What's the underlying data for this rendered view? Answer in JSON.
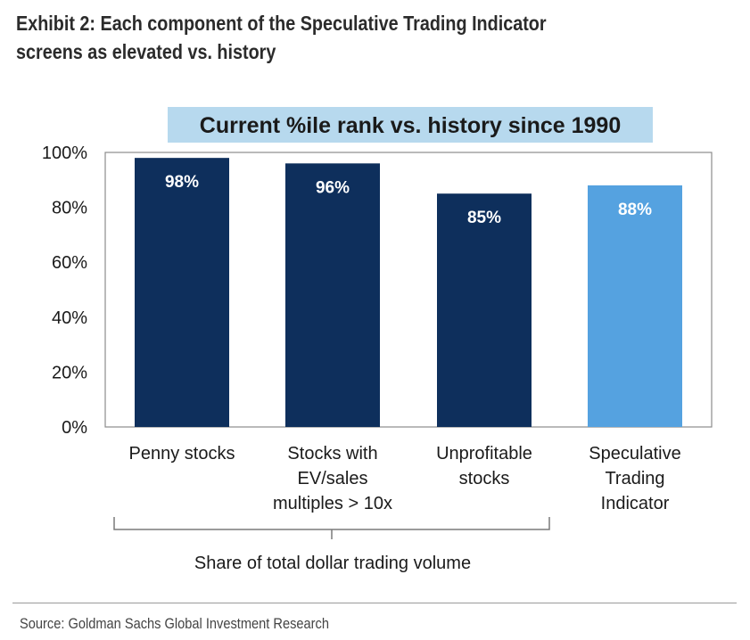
{
  "exhibit": {
    "title_line1": "Exhibit 2: Each component of the Speculative Trading Indicator",
    "title_line2": "screens as elevated vs. history"
  },
  "chart_data": {
    "type": "bar",
    "title": "Current %ile rank vs. history since 1990",
    "categories": [
      [
        "Penny stocks"
      ],
      [
        "Stocks with",
        "EV/sales",
        "multiples > 10x"
      ],
      [
        "Unprofitable",
        "stocks"
      ],
      [
        "Speculative",
        "Trading",
        "Indicator"
      ]
    ],
    "values": [
      98,
      96,
      85,
      88
    ],
    "data_labels": [
      "98%",
      "96%",
      "85%",
      "88%"
    ],
    "bar_colors": [
      "#0e2f5c",
      "#0e2f5c",
      "#0e2f5c",
      "#55a2e0"
    ],
    "label_color": "#ffffff",
    "title_bg": "#b7d9ee",
    "ylim": [
      0,
      100
    ],
    "yticks": [
      0,
      20,
      40,
      60,
      80,
      100
    ],
    "ytick_labels": [
      "0%",
      "20%",
      "40%",
      "60%",
      "80%",
      "100%"
    ],
    "group_bracket_label": "Share of total dollar trading volume",
    "grid": false
  },
  "source": "Source: Goldman Sachs Global Investment Research"
}
